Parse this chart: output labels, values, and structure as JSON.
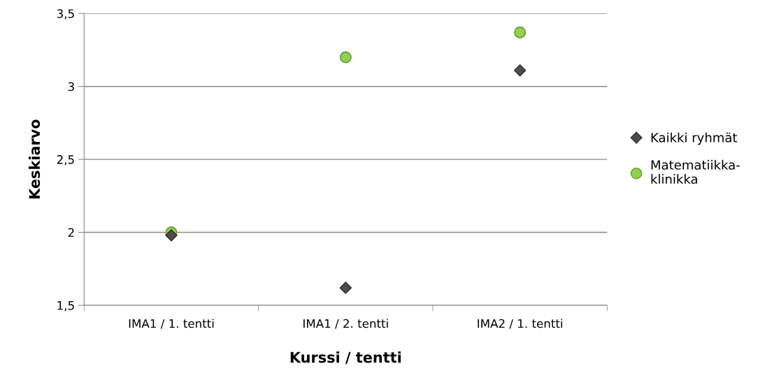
{
  "chart_data": {
    "type": "scatter",
    "xlabel": "Kurssi / tentti",
    "ylabel": "Keskiarvo",
    "categories": [
      "IMA1 / 1. tentti",
      "IMA1 / 2. tentti",
      "IMA2 / 1. tentti"
    ],
    "series": [
      {
        "name": "Kaikki ryhmät",
        "color": "#4d4d4d",
        "marker": "diamond",
        "values": [
          1.98,
          1.62,
          3.11
        ]
      },
      {
        "name": "Matematiikka-\nklinikka",
        "color": "#92d050",
        "marker": "circle",
        "values": [
          2.0,
          3.2,
          3.37
        ]
      }
    ],
    "ylim": [
      1.5,
      3.5
    ],
    "yticks": [
      {
        "value": 1.5,
        "label": "1,5"
      },
      2,
      {
        "value": 2.5,
        "label": "2,5"
      },
      3,
      {
        "value": 3.5,
        "label": "3,5"
      }
    ],
    "grid": "y",
    "legend": "right"
  }
}
